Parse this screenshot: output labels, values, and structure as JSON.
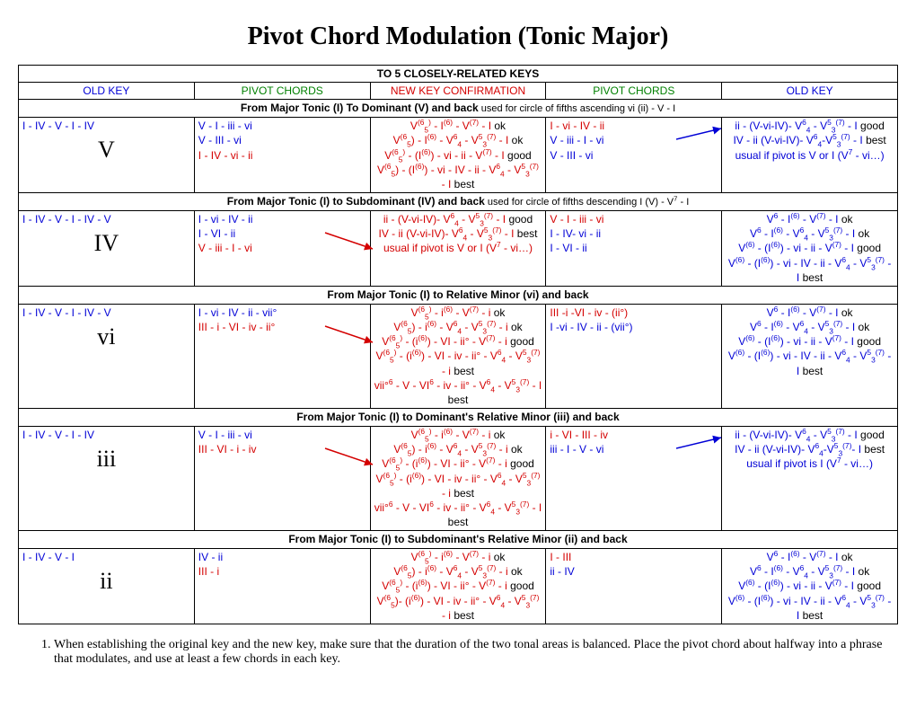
{
  "title": "Pivot Chord Modulation (Tonic Major)",
  "header_main": "TO 5 CLOSELY-RELATED KEYS",
  "col_headers": {
    "c1": "OLD KEY",
    "c2": "PIVOT CHORDS",
    "c3": "NEW KEY CONFIRMATION",
    "c4": "PIVOT CHORDS",
    "c5": "OLD KEY"
  },
  "sections": [
    {
      "sub_bold": "From Major Tonic (I) To Dominant (V) and back",
      "sub_light": " used for circle of fifths ascending vi (ii) - V - I",
      "big": "V",
      "c1": "I - IV - V - I - IV",
      "c2": [
        "V - I - iii - vi",
        "V   -   III - vi",
        "I - IV - vi - ii"
      ],
      "c3": [
        "V<sup>(6</sup><sub class='s'>5</sub><sup>)</sup> - I<sup>(6)</sup> - V<sup>(7)</sup> - I <span class='blk'>ok</span>",
        "V<sup>(6</sup><sub class='s'>5</sub>) - I<sup>(6)</sup> - V<sup>6</sup><sub class='s'>4</sub> - V<sup>5</sup><sub class='s'>3</sub><sup>(7)</sup> - I <span class='blk'>ok</span>",
        "V<sup>(6</sup><sub class='s'>5</sub><sup>)</sup> - (I<sup>(6)</sup>) - vi - ii - V<sup>(7)</sup> - I <span class='blk'>good</span>",
        "V<sup>(6</sup><sub class='s'>5</sub>) - (I<sup>(6)</sup>) - vi - IV - ii - V<sup>6</sup><sub class='s'>4</sub> - V<sup>5</sup><sub class='s'>3</sub><sup>(7)</sup> - I <span class='blk'>best</span>"
      ],
      "c4": [
        "I -  vi - IV - ii",
        "V - iii - I   - vi",
        "V - III    -    vi"
      ],
      "c5": [
        "ii - (V-vi-IV)- V<sup>6</sup><sub class='s'>4</sub> - V<sup>5</sup><sub class='s'>3</sub><sup>(7)</sup> - I <span class='blk'>good</span>",
        "IV - ii (V-vi-IV)- V<sup>6</sup><sub class='s'>4</sub>-V<sup>5</sup><sub class='s'>3</sub><sup>(7)</sup> - I <span class='blk'>best</span>",
        "usual if pivot is V or I (V<sup>7</sup> - vi…)"
      ],
      "c2_colors": [
        "blue",
        "blue",
        "red"
      ],
      "c3_colors": [
        "red",
        "red",
        "red",
        "red"
      ],
      "c4_colors": [
        "red",
        "blue",
        "blue"
      ],
      "c5_colors": [
        "blue",
        "blue",
        "blue"
      ],
      "arrow_dir": "right"
    },
    {
      "sub_bold": "From Major Tonic (I) to Subdominant (IV) and back",
      "sub_light": " used for circle of fifths descending I (V) - V<sup>7</sup> - I",
      "big": "IV",
      "c1": "I - IV - V - I - IV - V",
      "c2": [
        "I -  vi - IV - ii",
        " I - VI    -    ii",
        "V - iii - I  - vi"
      ],
      "c3": [
        "ii - (V-vi-IV)- V<sup>6</sup><sub class='s'>4</sub> - V<sup>5</sup><sub class='s'>3</sub><sup>(7)</sup> - I <span class='blk'>good</span>",
        "IV - ii (V-vi-IV)- V<sup>6</sup><sub class='s'>4</sub> - V<sup>5</sup><sub class='s'>3</sub><sup>(7)</sup> - I <span class='blk'>best</span>",
        "usual if pivot is V or I (V<sup>7</sup> - vi…)"
      ],
      "c4": [
        "V - I - iii - vi",
        "I - IV- vi - ii",
        "I   -   VI - ii"
      ],
      "c5": [
        "V<sup>6</sup> - I<sup>(6)</sup> - V<sup>(7)</sup> - I <span class='blk'>ok</span>",
        "V<sup>6</sup> - I<sup>(6)</sup> - V<sup>6</sup><sub class='s'>4</sub> - V<sup>5</sup><sub class='s'>3</sub><sup>(7)</sup> - I <span class='blk'>ok</span>",
        "V<sup>(6)</sup> - (I<sup>(6)</sup>) - vi - ii - V<sup>(7)</sup> - I <span class='blk'>good</span>",
        "V<sup>(6)</sup> - (I<sup>(6)</sup>) - vi - IV - ii - V<sup>6</sup><sub class='s'>4</sub> - V<sup>5</sup><sub class='s'>3</sub><sup>(7)</sup> - I <span class='blk'>best</span>"
      ],
      "c2_colors": [
        "blue",
        "blue",
        "red"
      ],
      "c3_colors": [
        "red",
        "red",
        "red"
      ],
      "c4_colors": [
        "red",
        "blue",
        "blue"
      ],
      "c5_colors": [
        "blue",
        "blue",
        "blue",
        "blue"
      ],
      "arrow_dir": "left"
    },
    {
      "sub_bold": "From Major Tonic (I) to Relative Minor (vi) and back",
      "sub_light": "",
      "big": "vi",
      "c1": "I - IV - V - I - IV - V",
      "c2": [
        "I - vi - IV - ii - vii°",
        "III - i  - VI - iv - ii°"
      ],
      "c3": [
        "V<sup>(6</sup><sub class='s'>5</sub><sup>)</sup> - i<sup>(6)</sup> - V<sup>(7)</sup> - i <span class='blk'>ok</span>",
        "V<sup>(6</sup><sub class='s'>5</sub>) - i<sup>(6)</sup> - V<sup>6</sup><sub class='s'>4</sub> - V<sup>5</sup><sub class='s'>3</sub><sup>(7)</sup> - i <span class='blk'>ok</span>",
        "V<sup>(6</sup><sub class='s'>5</sub><sup>)</sup> - (i<sup>(6)</sup>) - VI - ii° - V<sup>(7)</sup> - i <span class='blk'>good</span>",
        "V<sup>(6</sup><sub class='s'>5</sub><sup>)</sup> - (i<sup>(6)</sup>) - VI - iv - ii° - V<sup>6</sup><sub class='s'>4</sub> - V<sup>5</sup><sub class='s'>3</sub><sup>(7)</sup> - i <span class='blk'>best</span>",
        "vii°<sup>6</sup> - V - VI<sup>6</sup> - iv - ii° - V<sup>6</sup><sub class='s'>4</sub> - V<sup>5</sup><sub class='s'>3</sub><sup>(7)</sup> - I <span class='blk'>best</span>"
      ],
      "c4": [
        "III -i  -VI - iv - (ii°)",
        "I -vi - IV - ii - (vii°)"
      ],
      "c5": [
        "V<sup>6</sup> - I<sup>(6)</sup> - V<sup>(7)</sup> - I <span class='blk'>ok</span>",
        "V<sup>6</sup> - I<sup>(6)</sup> - V<sup>6</sup><sub class='s'>4</sub> - V<sup>5</sup><sub class='s'>3</sub><sup>(7)</sup> - I <span class='blk'>ok</span>",
        "V<sup>(6)</sup> - (I<sup>(6)</sup>) - vi - ii - V<sup>(7)</sup> - I <span class='blk'>good</span>",
        "V<sup>(6)</sup> - (I<sup>(6)</sup>) - vi - IV - ii - V<sup>6</sup><sub class='s'>4</sub> - V<sup>5</sup><sub class='s'>3</sub><sup>(7)</sup> - I <span class='blk'>best</span>"
      ],
      "c2_colors": [
        "blue",
        "red"
      ],
      "c3_colors": [
        "red",
        "red",
        "red",
        "red",
        "red"
      ],
      "c4_colors": [
        "red",
        "blue"
      ],
      "c5_colors": [
        "blue",
        "blue",
        "blue",
        "blue"
      ],
      "arrow_dir": "left"
    },
    {
      "sub_bold": "From Major Tonic (I) to Dominant's Relative Minor (iii) and back",
      "sub_light": "",
      "big": "iii",
      "c1": "I - IV - V - I - IV",
      "c2": [
        "V  - I   - iii - vi",
        "III - VI -  i  - iv"
      ],
      "c3": [
        "V<sup>(6</sup><sub class='s'>5</sub><sup>)</sup> - i<sup>(6)</sup> - V<sup>(7)</sup> - i <span class='blk'>ok</span>",
        "V<sup>(6</sup><sub class='s'>5</sub>) - i<sup>(6)</sup> - V<sup>6</sup><sub class='s'>4</sub> - V<sup>5</sup><sub class='s'>3</sub><sup>(7)</sup> - i <span class='blk'>ok</span>",
        "V<sup>(6</sup><sub class='s'>5</sub><sup>)</sup> - (i<sup>(6)</sup>) - VI - ii° - V<sup>(7)</sup> - i <span class='blk'>good</span>",
        "V<sup>(6</sup><sub class='s'>5</sub><sup>)</sup> - (i<sup>(6)</sup>) - VI - iv - ii° - V<sup>6</sup><sub class='s'>4</sub> - V<sup>5</sup><sub class='s'>3</sub><sup>(7)</sup> - i <span class='blk'>best</span>",
        "vii°<sup>6</sup> - V - VI<sup>6</sup> - iv - ii° - V<sup>6</sup><sub class='s'>4</sub> - V<sup>5</sup><sub class='s'>3</sub><sup>(7)</sup> - I <span class='blk'>best</span>"
      ],
      "c4": [
        "i - VI - III - iv",
        "iii - I -  V - vi"
      ],
      "c5": [
        "ii - (V-vi-IV)- V<sup>6</sup><sub class='s'>4</sub> - V<sup>5</sup><sub class='s'>3</sub><sup>(7)</sup> - I <span class='blk'>good</span>",
        "IV - ii (V-vi-IV)- V<sup>6</sup><sub class='s'>4</sub>-V<sup>5</sup><sub class='s'>3</sub><sup>(7)</sup>- I <span class='blk'>best</span>",
        "usual if pivot is I (V<sup>7</sup> - vi…)"
      ],
      "c2_colors": [
        "blue",
        "red"
      ],
      "c3_colors": [
        "red",
        "red",
        "red",
        "red",
        "red"
      ],
      "c4_colors": [
        "red",
        "blue"
      ],
      "c5_colors": [
        "blue",
        "blue",
        "blue"
      ],
      "arrow_dir": "both"
    },
    {
      "sub_bold": "From Major Tonic (I) to Subdominant's Relative Minor (ii) and back",
      "sub_light": "",
      "big": "ii",
      "c1": "I - IV - V - I",
      "c2": [
        "IV - ii",
        "III  - i"
      ],
      "c3": [
        "V<sup>(6</sup><sub class='s'>5</sub><sup>)</sup> - i<sup>(6)</sup> - V<sup>(7)</sup> - i <span class='blk'>ok</span>",
        "V<sup>(6</sup><sub class='s'>5</sub>) - i<sup>(6)</sup> - V<sup>6</sup><sub class='s'>4</sub> - V<sup>5</sup><sub class='s'>3</sub><sup>(7)</sup> - i <span class='blk'>ok</span>",
        "V<sup>(6</sup><sub class='s'>5</sub><sup>)</sup> - (i<sup>(6)</sup>) - VI - ii° - V<sup>(7)</sup> - i <span class='blk'>good</span>",
        "V<sup>(6</sup><sub class='s'>5</sub>)- (i<sup>(6)</sup>) - VI - iv - ii° - V<sup>6</sup><sub class='s'>4</sub> - V<sup>5</sup><sub class='s'>3</sub><sup>(7)</sup> - i <span class='blk'>best</span>"
      ],
      "c4": [
        "I - III",
        "ii - IV"
      ],
      "c5": [
        "V<sup>6</sup> - I<sup>(6)</sup> - V<sup>(7)</sup> - I <span class='blk'>ok</span>",
        "V<sup>6</sup> - I<sup>(6)</sup> - V<sup>6</sup><sub class='s'>4</sub> - V<sup>5</sup><sub class='s'>3</sub><sup>(7)</sup> - I <span class='blk'>ok</span>",
        "V<sup>(6)</sup> - (I<sup>(6)</sup>) - vi - ii - V<sup>(7)</sup> - I <span class='blk'>good</span>",
        "V<sup>(6)</sup> - (I<sup>(6)</sup>) - vi - IV - ii - V<sup>6</sup><sub class='s'>4</sub> - V<sup>5</sup><sub class='s'>3</sub><sup>(7)</sup> - I <span class='blk'>best</span>"
      ],
      "c2_colors": [
        "blue",
        "red"
      ],
      "c3_colors": [
        "red",
        "red",
        "red",
        "red"
      ],
      "c4_colors": [
        "red",
        "blue"
      ],
      "c5_colors": [
        "blue",
        "blue",
        "blue",
        "blue"
      ],
      "arrow_dir": "none"
    }
  ],
  "note": "When establishing the original key and the new key, make sure that the duration of the two tonal areas is balanced. Place the pivot chord about halfway into a phrase that modulates, and use at least a few chords in each key.",
  "colors": {
    "blue": "#0000d6",
    "red": "#d40000",
    "green": "#008000",
    "black": "#000000"
  }
}
